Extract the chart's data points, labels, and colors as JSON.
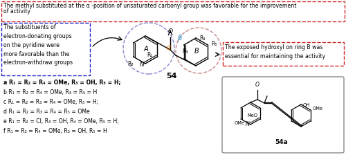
{
  "bg_color": "#ffffff",
  "top_box_edge": "#cc2222",
  "left_box_edge": "#2222cc",
  "right_box_edge": "#cc2222",
  "struct_box_edge": "#888888",
  "alpha_color": "#cc6600",
  "beta_color": "#0088cc",
  "circle_A_edge": "#8888cc",
  "circle_B_edge": "#cc8888",
  "top_text1": "The methyl substituted at the α -position of unsaturated carbonyl group was favorable for the improvement",
  "top_text2": "of activity",
  "left_text": "The substituents of\nelectron-donating groups\non the pyridine were\nmore favorable than the\nelectron-withdraw groups",
  "right_text": "The exposed hydroxyl on ring B was\nessential for maintaining the activity",
  "lines": [
    {
      "text": "a R₁ = R₂ = R₄ = OMe, R₃ = OH, R₅ = H;",
      "bold": true
    },
    {
      "text": "b R₁ = R₂ = R₄ = OMe, R₃ = R₅ = H",
      "bold": false
    },
    {
      "text": "c R₁ = R₂ = R₃ = R₄ = OMe, R₅ = H;",
      "bold": false
    },
    {
      "text": "d R₁ = R₂ = R₃ = R₄ = R₅ = OMe",
      "bold": false
    },
    {
      "text": "e R₁ = R₂ = Cl, R₃ = OH, R₄ = OMe, R₅ = H;",
      "bold": false
    },
    {
      "text": "f R₁ = R₂ = R₄ = OMe, R₃ = OH, R₅ = H",
      "bold": false
    }
  ]
}
